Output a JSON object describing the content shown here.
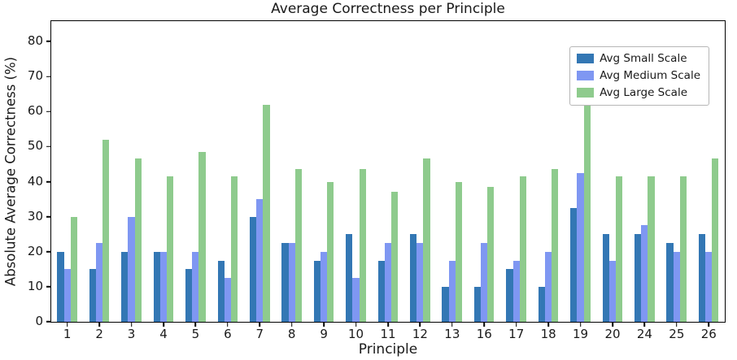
{
  "chart_data": {
    "type": "bar",
    "title": "Average Correctness per Principle",
    "xlabel": "Principle",
    "ylabel": "Absolute Average Correctness (%)",
    "categories": [
      "1",
      "2",
      "3",
      "4",
      "5",
      "6",
      "7",
      "8",
      "9",
      "10",
      "11",
      "12",
      "13",
      "16",
      "17",
      "18",
      "19",
      "20",
      "24",
      "25",
      "26"
    ],
    "series": [
      {
        "name": "Avg Small Scale",
        "color": "#3377b4",
        "values": [
          20,
          15,
          20,
          20,
          15,
          17.5,
          30,
          22.5,
          17.5,
          25,
          17.5,
          25,
          10,
          10,
          15,
          10,
          32.5,
          25,
          25,
          22.5,
          25
        ]
      },
      {
        "name": "Avg Medium Scale",
        "color": "#7f97f2",
        "values": [
          15,
          22.5,
          30,
          20,
          20,
          12.5,
          35,
          22.5,
          20,
          12.5,
          22.5,
          22.5,
          17.5,
          22.5,
          17.5,
          20,
          42.5,
          17.5,
          27.5,
          20,
          20
        ]
      },
      {
        "name": "Avg Large Scale",
        "color": "#8ecb8d",
        "values": [
          30,
          52,
          46.5,
          41.5,
          48.5,
          41.5,
          62,
          43.5,
          40,
          43.5,
          37,
          46.5,
          40,
          38.5,
          41.5,
          43.5,
          65,
          41.5,
          41.5,
          41.5,
          46.5
        ]
      }
    ],
    "ylim": [
      0,
      85.8
    ],
    "yticks": [
      0,
      10,
      20,
      30,
      40,
      50,
      60,
      70,
      80
    ],
    "grid": false,
    "legend_position": "upper right"
  }
}
